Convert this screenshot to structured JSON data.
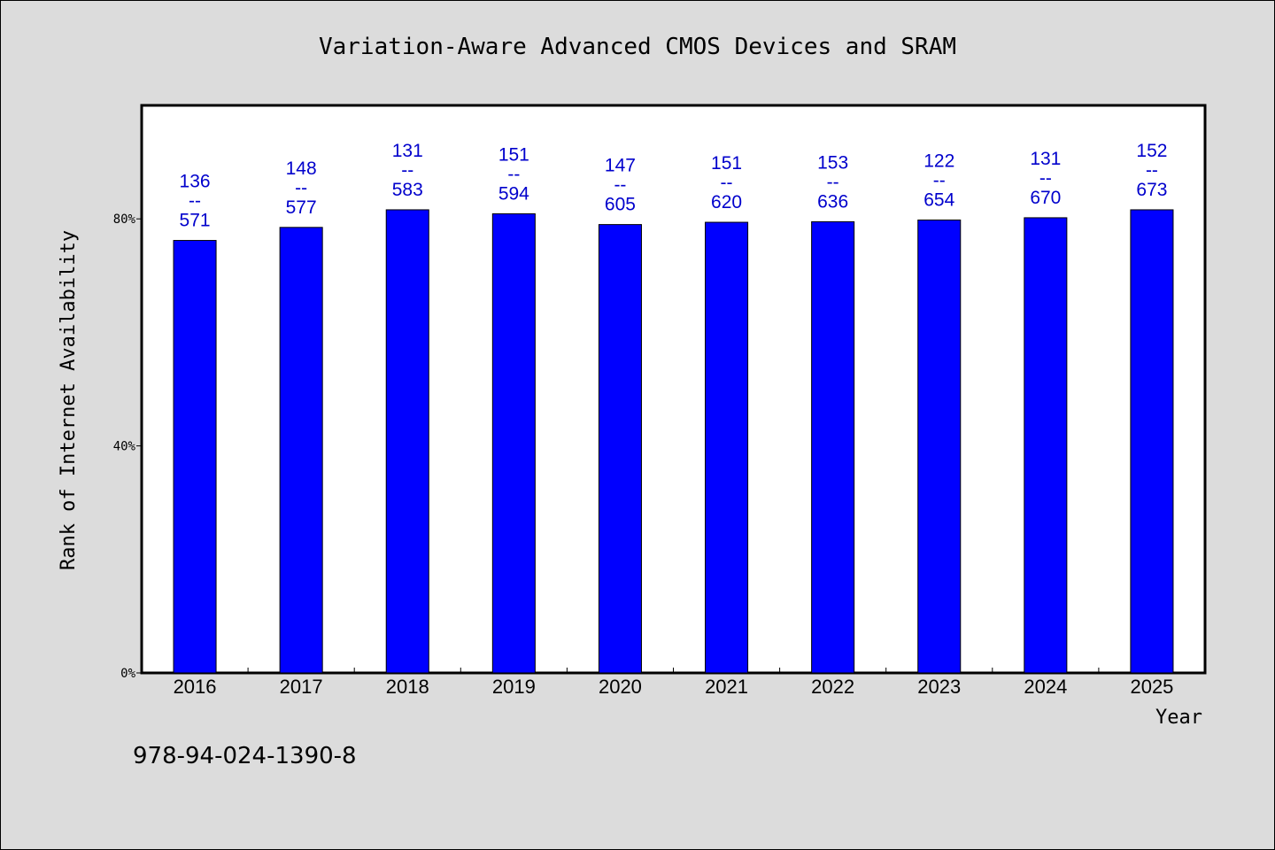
{
  "footer_text": "978-94-024-1390-8",
  "colors": {
    "bar": "#0000ff",
    "label": "#0000cc",
    "background": "#dcdcdc",
    "plot": "#ffffff"
  },
  "chart_data": {
    "type": "bar",
    "title": "Variation-Aware Advanced CMOS Devices and SRAM",
    "xlabel": "Year",
    "ylabel": "Rank of Internet Availability",
    "ylim": [
      0,
      100
    ],
    "yticks": [
      0,
      40,
      80
    ],
    "ytick_labels": [
      "0%",
      "40%",
      "80%"
    ],
    "grid": false,
    "categories": [
      "2016",
      "2017",
      "2018",
      "2019",
      "2020",
      "2021",
      "2022",
      "2023",
      "2024",
      "2025"
    ],
    "values": [
      76.2,
      78.5,
      81.6,
      80.9,
      79.0,
      79.4,
      79.5,
      79.8,
      80.2,
      81.6
    ],
    "data_labels": [
      [
        "136",
        "--",
        "571"
      ],
      [
        "148",
        "--",
        "577"
      ],
      [
        "131",
        "--",
        "583"
      ],
      [
        "151",
        "--",
        "594"
      ],
      [
        "147",
        "--",
        "605"
      ],
      [
        "151",
        "--",
        "620"
      ],
      [
        "153",
        "--",
        "636"
      ],
      [
        "122",
        "--",
        "654"
      ],
      [
        "131",
        "--",
        "670"
      ],
      [
        "152",
        "--",
        "673"
      ]
    ]
  }
}
